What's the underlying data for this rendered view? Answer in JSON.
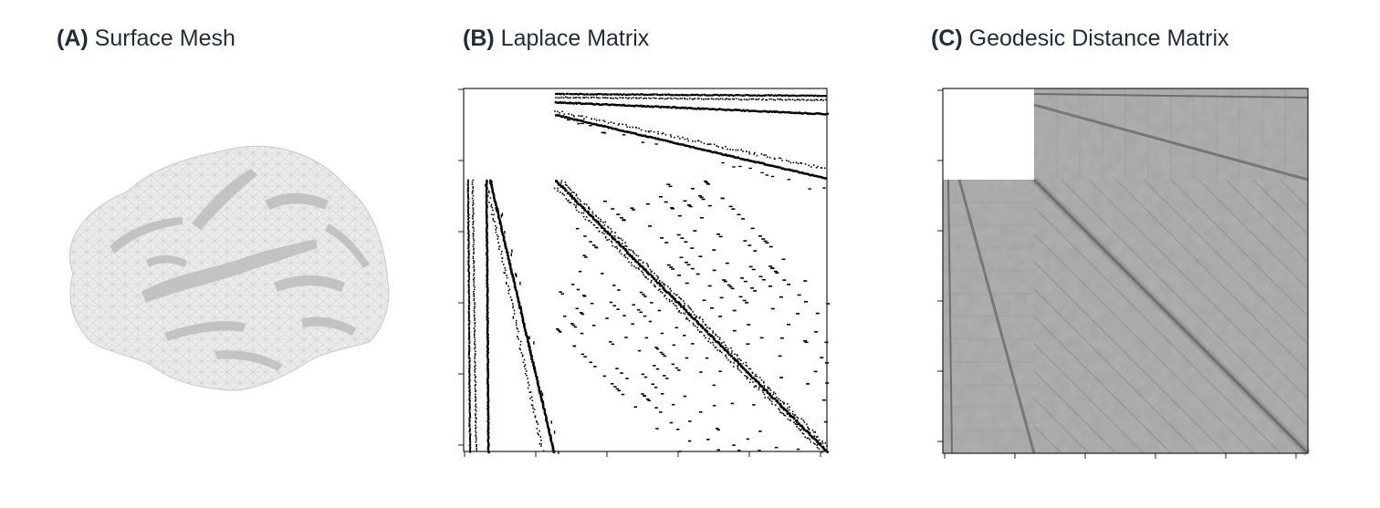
{
  "panels": [
    {
      "letter": "(A)",
      "label": "Surface Mesh"
    },
    {
      "letter": "(B)",
      "label": "Laplace Matrix"
    },
    {
      "letter": "(C)",
      "label": "Geodesic Distance Matrix"
    }
  ],
  "colors": {
    "title_text": "#1f2d3a",
    "mesh_fill": "#e9e9e9",
    "mesh_line": "#c6c6c6",
    "sulci_fill": "#b5b5b5",
    "sparse_dots": "#000000"
  }
}
